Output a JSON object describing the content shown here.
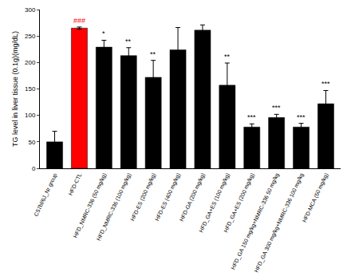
{
  "chart_data": {
    "type": "bar",
    "y_label": "TG level in liver tissue (0.1g)(mg/dL)",
    "categories": [
      "C57bl/6J_Nr group",
      "HFD-CTL",
      "HFD_NMRC-336 (50 mg/kg)",
      "HFD_NMRC-336 (100 mg/kg)",
      "HFD-ES (200 mg/kg)",
      "HFD-ES (400 mg/kg)",
      "HFD-GA (200 mg/kg)",
      "HFD_GA+ES (100 mg/kg)",
      "HFD_GA+ES (200 mg/kg)",
      "HFD_GA 150 mg/kg+NMRC-336 50 mg/kg",
      "HFD_GA 300 mg/kg+NMRC-336 100 mg/kg",
      "HFD-MCA (50 mg/kg)"
    ],
    "values": [
      50,
      265,
      229,
      213,
      172,
      224,
      261,
      157,
      78,
      96,
      78,
      122
    ],
    "error": [
      20,
      2,
      13,
      15,
      32,
      42,
      10,
      42,
      6,
      6,
      7,
      25
    ],
    "significance": [
      null,
      "###",
      "*",
      "**",
      "**",
      null,
      null,
      "**",
      "***",
      "***",
      "***",
      "***"
    ],
    "colors": [
      "#000000",
      "#ff0000",
      "#000000",
      "#000000",
      "#000000",
      "#000000",
      "#000000",
      "#000000",
      "#000000",
      "#000000",
      "#000000",
      "#000000"
    ],
    "ylim": [
      0,
      300
    ],
    "yticks": [
      0,
      50,
      100,
      150,
      200,
      250,
      300
    ],
    "grid": false
  }
}
